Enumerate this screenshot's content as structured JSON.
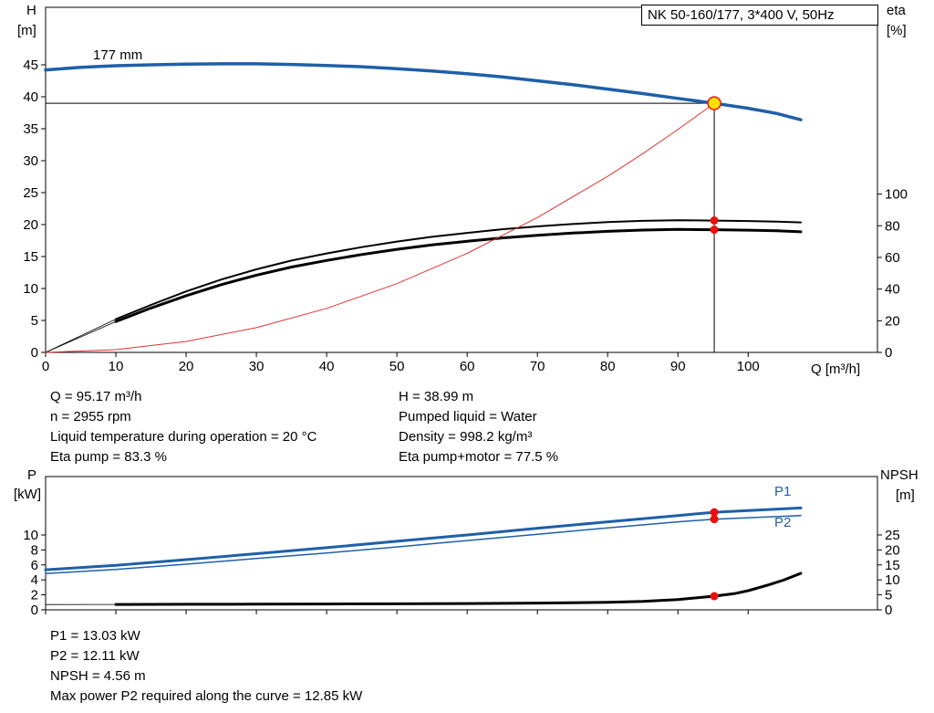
{
  "labels": {
    "top_left": [
      "H",
      "[m]"
    ],
    "top_right": [
      "eta",
      "[%]"
    ],
    "x_axis": "Q [m³/h]",
    "bottom_left": [
      "P",
      "[kW]"
    ],
    "bottom_right": [
      "NPSH",
      "[m]"
    ]
  },
  "info_top": {
    "left": [
      "Q = 95.17 m³/h",
      "n = 2955 rpm",
      "Liquid temperature during operation = 20 °C",
      "Eta pump = 83.3 %"
    ],
    "right": [
      "H = 38.99 m",
      "Pumped liquid = Water",
      "Density = 998.2 kg/m³",
      "Eta pump+motor = 77.5 %"
    ]
  },
  "info_bottom": [
    "P1 = 13.03 kW",
    "P2 = 12.11 kW",
    "NPSH = 4.56 m",
    "Max power P2 required along the curve = 12.85 kW"
  ],
  "colors": {
    "curve_blue": "#1f5fa8",
    "curve_black": "#000000",
    "system_curve_red": "#dd3333",
    "marker_red": "#e8100c",
    "duty_point_yellow": "#ffe000"
  },
  "chart_data": [
    {
      "type": "line",
      "title": "NK 50-160/177, 3*400 V, 50Hz",
      "xlabel": "Q [m³/h]",
      "ylabel_left": "H [m]",
      "ylabel_right": "eta [%]",
      "xlim": [
        0,
        118.4
      ],
      "ylim": [
        0,
        54
      ],
      "ylim_right": [
        0,
        218
      ],
      "xticks": [
        0,
        10,
        20,
        30,
        40,
        50,
        60,
        70,
        80,
        90,
        100
      ],
      "yticks": [
        0,
        5,
        10,
        15,
        20,
        25,
        30,
        35,
        40,
        45
      ],
      "yticks_right": [
        0,
        20,
        40,
        60,
        80,
        100
      ],
      "show_xtick_labels": true,
      "series": [
        {
          "name": "head-curve-177mm",
          "label": "177 mm",
          "color": "#1f5fa8",
          "width": 3.5,
          "axis": "left",
          "points": [
            [
              0,
              44.2
            ],
            [
              5,
              44.6
            ],
            [
              10,
              44.85
            ],
            [
              15,
              45.0
            ],
            [
              20,
              45.1
            ],
            [
              25,
              45.15
            ],
            [
              30,
              45.15
            ],
            [
              35,
              45.05
            ],
            [
              40,
              44.9
            ],
            [
              45,
              44.7
            ],
            [
              50,
              44.4
            ],
            [
              55,
              44.05
            ],
            [
              60,
              43.6
            ],
            [
              65,
              43.1
            ],
            [
              70,
              42.5
            ],
            [
              75,
              41.9
            ],
            [
              80,
              41.2
            ],
            [
              85,
              40.5
            ],
            [
              90,
              39.75
            ],
            [
              95.17,
              38.99
            ],
            [
              100,
              38.2
            ],
            [
              104,
              37.4
            ],
            [
              107.5,
              36.4
            ]
          ]
        },
        {
          "name": "eta-pump-curve",
          "color": "#000000",
          "width": 2,
          "axis": "right",
          "points": [
            [
              10,
              21
            ],
            [
              15,
              30
            ],
            [
              20,
              38.5
            ],
            [
              25,
              46
            ],
            [
              30,
              52.5
            ],
            [
              35,
              58
            ],
            [
              40,
              62.5
            ],
            [
              45,
              66.5
            ],
            [
              50,
              70
            ],
            [
              55,
              73
            ],
            [
              60,
              75.5
            ],
            [
              65,
              77.8
            ],
            [
              70,
              79.6
            ],
            [
              75,
              81.1
            ],
            [
              80,
              82.3
            ],
            [
              85,
              83.1
            ],
            [
              90,
              83.5
            ],
            [
              95.17,
              83.3
            ],
            [
              100,
              83.0
            ],
            [
              104,
              82.6
            ],
            [
              107.5,
              82.1
            ]
          ]
        },
        {
          "name": "eta-pump-lead-line",
          "color": "#000000",
          "width": 0.8,
          "axis": "right",
          "points": [
            [
              0,
              0
            ],
            [
              10,
              21
            ]
          ]
        },
        {
          "name": "eta-pump-motor-curve",
          "color": "#000000",
          "width": 3,
          "axis": "right",
          "points": [
            [
              10,
              19.5
            ],
            [
              15,
              28
            ],
            [
              20,
              35.8
            ],
            [
              25,
              42.8
            ],
            [
              30,
              48.8
            ],
            [
              35,
              53.9
            ],
            [
              40,
              58.1
            ],
            [
              45,
              61.8
            ],
            [
              50,
              65.1
            ],
            [
              55,
              67.9
            ],
            [
              60,
              70.2
            ],
            [
              65,
              72.3
            ],
            [
              70,
              74.0
            ],
            [
              75,
              75.4
            ],
            [
              80,
              76.5
            ],
            [
              85,
              77.3
            ],
            [
              90,
              77.7
            ],
            [
              95.17,
              77.5
            ],
            [
              100,
              77.2
            ],
            [
              104,
              76.8
            ],
            [
              107.5,
              76.2
            ]
          ]
        },
        {
          "name": "eta-pump-motor-lead-line",
          "color": "#000000",
          "width": 0.8,
          "axis": "right",
          "points": [
            [
              0,
              0
            ],
            [
              10,
              19.5
            ]
          ]
        },
        {
          "name": "system-resistance-curve",
          "color": "#dd3333",
          "width": 1,
          "axis": "left",
          "points": [
            [
              0,
              0
            ],
            [
              10,
              0.43
            ],
            [
              20,
              1.72
            ],
            [
              30,
              3.87
            ],
            [
              40,
              6.89
            ],
            [
              50,
              10.76
            ],
            [
              60,
              15.5
            ],
            [
              70,
              21.1
            ],
            [
              80,
              27.55
            ],
            [
              85,
              31.1
            ],
            [
              90,
              34.87
            ],
            [
              95.17,
              38.99
            ]
          ]
        }
      ],
      "lines": [
        {
          "name": "duty-head-hline",
          "x1": 0,
          "y1": 38.99,
          "x2": 95.17,
          "y2": 38.99,
          "color": "#000000",
          "width": 1
        },
        {
          "name": "duty-flow-vline",
          "x1": 95.17,
          "y1": 0,
          "x2": 95.17,
          "y2": 38.99,
          "color": "#000000",
          "width": 1
        }
      ],
      "markers": [
        {
          "name": "duty-point",
          "x": 95.17,
          "y": 38.99,
          "axis": "left",
          "r": 7,
          "fill": "#ffe000",
          "stroke": "#e8100c",
          "stroke_width": 1.5
        },
        {
          "name": "eta-pump-point",
          "x": 95.17,
          "y": 83.3,
          "axis": "right",
          "r": 4.5,
          "fill": "#e8100c"
        },
        {
          "name": "eta-pump-motor-point",
          "x": 95.17,
          "y": 77.5,
          "axis": "right",
          "r": 4.5,
          "fill": "#e8100c"
        }
      ]
    },
    {
      "type": "line",
      "title": "Power and NPSH curves",
      "xlabel": "Q [m³/h]",
      "ylabel_left": "P [kW]",
      "ylabel_right": "NPSH [m]",
      "xlim": [
        0,
        118.4
      ],
      "ylim": [
        0,
        17.8
      ],
      "ylim_right": [
        0,
        44.5
      ],
      "xticks": [
        0,
        10,
        20,
        30,
        40,
        50,
        60,
        70,
        80,
        90,
        100
      ],
      "yticks": [
        0,
        2,
        4,
        6,
        8,
        10
      ],
      "yticks_right": [
        0,
        5,
        10,
        15,
        20,
        25
      ],
      "show_xtick_labels": false,
      "series": [
        {
          "name": "p1-curve",
          "label": "P1",
          "color": "#1f5fa8",
          "width": 3,
          "axis": "left",
          "points": [
            [
              0,
              5.35
            ],
            [
              10,
              5.95
            ],
            [
              20,
              6.7
            ],
            [
              30,
              7.5
            ],
            [
              40,
              8.3
            ],
            [
              50,
              9.15
            ],
            [
              60,
              10.0
            ],
            [
              70,
              10.9
            ],
            [
              80,
              11.75
            ],
            [
              90,
              12.6
            ],
            [
              95.17,
              13.03
            ],
            [
              100,
              13.25
            ],
            [
              107.5,
              13.6
            ]
          ]
        },
        {
          "name": "p2-curve",
          "label": "P2",
          "color": "#1f5fa8",
          "width": 1.5,
          "axis": "left",
          "points": [
            [
              0,
              4.85
            ],
            [
              10,
              5.4
            ],
            [
              20,
              6.1
            ],
            [
              30,
              6.85
            ],
            [
              40,
              7.6
            ],
            [
              50,
              8.4
            ],
            [
              60,
              9.25
            ],
            [
              70,
              10.1
            ],
            [
              80,
              10.95
            ],
            [
              90,
              11.75
            ],
            [
              95.17,
              12.11
            ],
            [
              100,
              12.3
            ],
            [
              107.5,
              12.6
            ]
          ]
        },
        {
          "name": "npsh-curve",
          "color": "#000000",
          "width": 3,
          "axis": "right",
          "points": [
            [
              10,
              1.8
            ],
            [
              20,
              1.85
            ],
            [
              30,
              1.9
            ],
            [
              40,
              1.95
            ],
            [
              50,
              2.0
            ],
            [
              60,
              2.1
            ],
            [
              70,
              2.25
            ],
            [
              80,
              2.5
            ],
            [
              85,
              2.8
            ],
            [
              90,
              3.4
            ],
            [
              95.17,
              4.56
            ],
            [
              98,
              5.4
            ],
            [
              100,
              6.4
            ],
            [
              103,
              8.4
            ],
            [
              105,
              9.9
            ],
            [
              107.5,
              12.2
            ]
          ]
        },
        {
          "name": "npsh-lead-line",
          "color": "#000000",
          "width": 0.8,
          "axis": "right",
          "points": [
            [
              0,
              1.78
            ],
            [
              10,
              1.8
            ]
          ]
        }
      ],
      "lines": [],
      "markers": [
        {
          "name": "p1-point",
          "x": 95.17,
          "y": 13.03,
          "axis": "left",
          "r": 4.5,
          "fill": "#e8100c"
        },
        {
          "name": "p2-point",
          "x": 95.17,
          "y": 12.11,
          "axis": "left",
          "r": 4.5,
          "fill": "#e8100c"
        },
        {
          "name": "npsh-point",
          "x": 95.17,
          "y": 4.56,
          "axis": "right",
          "r": 4.5,
          "fill": "#e8100c"
        }
      ]
    }
  ]
}
